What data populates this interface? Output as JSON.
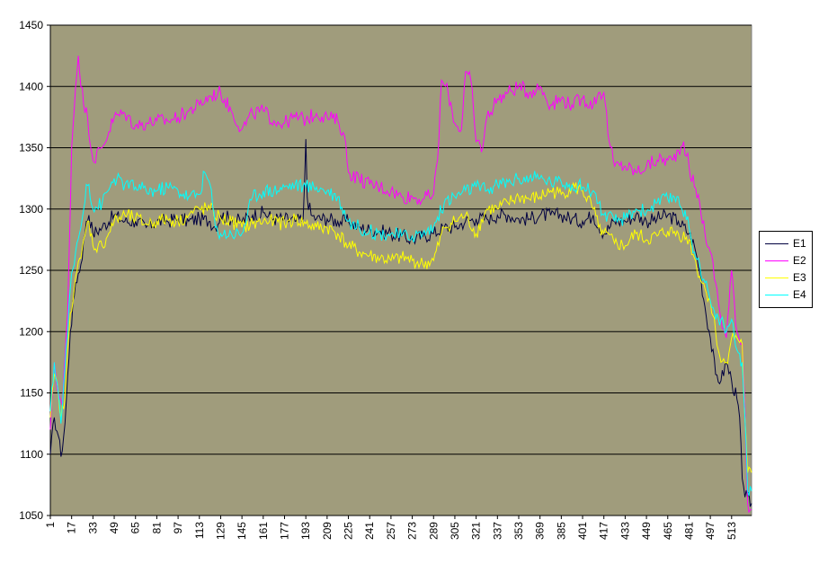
{
  "chart_data": {
    "type": "line",
    "title": "",
    "xlabel": "",
    "ylabel": "",
    "ylim": [
      1050,
      1450
    ],
    "yticks": [
      1050,
      1100,
      1150,
      1200,
      1250,
      1300,
      1350,
      1400,
      1450
    ],
    "xrange": [
      1,
      528
    ],
    "xticks": [
      1,
      17,
      33,
      49,
      65,
      81,
      97,
      113,
      129,
      145,
      161,
      177,
      193,
      209,
      225,
      241,
      257,
      273,
      289,
      305,
      321,
      337,
      353,
      369,
      385,
      401,
      417,
      433,
      449,
      465,
      481,
      497,
      513
    ],
    "grid": true,
    "background": "#A09C7C",
    "legend_position": "right",
    "series": [
      {
        "name": "E1",
        "color": "#000040",
        "x": [
          1,
          4,
          7,
          9,
          12,
          16,
          20,
          24,
          28,
          30,
          33,
          40,
          49,
          57,
          65,
          73,
          81,
          89,
          97,
          105,
          113,
          121,
          125,
          129,
          137,
          145,
          153,
          161,
          169,
          177,
          185,
          191,
          192,
          193,
          194,
          197,
          201,
          209,
          217,
          225,
          233,
          241,
          249,
          257,
          265,
          273,
          281,
          289,
          297,
          305,
          313,
          321,
          329,
          337,
          345,
          353,
          361,
          369,
          377,
          385,
          393,
          401,
          409,
          417,
          425,
          433,
          441,
          449,
          457,
          465,
          473,
          481,
          485,
          489,
          493,
          497,
          501,
          505,
          509,
          513,
          517,
          519,
          521,
          523,
          525,
          528
        ],
        "y": [
          1100,
          1130,
          1115,
          1098,
          1125,
          1200,
          1240,
          1255,
          1290,
          1295,
          1280,
          1285,
          1295,
          1290,
          1290,
          1285,
          1290,
          1290,
          1292,
          1290,
          1292,
          1290,
          1285,
          1295,
          1292,
          1290,
          1295,
          1297,
          1292,
          1292,
          1290,
          1292,
          1320,
          1357,
          1310,
          1295,
          1292,
          1292,
          1290,
          1290,
          1285,
          1283,
          1282,
          1280,
          1278,
          1275,
          1278,
          1280,
          1285,
          1285,
          1290,
          1292,
          1292,
          1295,
          1295,
          1292,
          1292,
          1295,
          1295,
          1295,
          1292,
          1290,
          1295,
          1280,
          1290,
          1290,
          1295,
          1290,
          1292,
          1295,
          1290,
          1280,
          1270,
          1250,
          1220,
          1195,
          1165,
          1160,
          1175,
          1160,
          1145,
          1130,
          1080,
          1065,
          1065,
          1060
        ]
      },
      {
        "name": "E2",
        "color": "#FF00FF",
        "x": [
          1,
          4,
          7,
          10,
          14,
          17,
          20,
          22,
          26,
          29,
          33,
          40,
          49,
          57,
          65,
          73,
          81,
          89,
          97,
          105,
          113,
          121,
          129,
          137,
          145,
          153,
          161,
          169,
          177,
          185,
          193,
          201,
          209,
          217,
          222,
          225,
          233,
          241,
          249,
          257,
          265,
          273,
          281,
          289,
          292,
          295,
          300,
          305,
          310,
          313,
          317,
          321,
          326,
          329,
          337,
          345,
          353,
          361,
          369,
          377,
          385,
          393,
          401,
          409,
          413,
          417,
          421,
          425,
          433,
          441,
          449,
          457,
          465,
          469,
          473,
          477,
          481,
          485,
          489,
          493,
          497,
          501,
          505,
          509,
          513,
          517,
          521,
          523,
          525,
          528
        ],
        "y": [
          1120,
          1175,
          1150,
          1140,
          1215,
          1350,
          1400,
          1425,
          1385,
          1375,
          1340,
          1350,
          1375,
          1378,
          1368,
          1370,
          1372,
          1372,
          1375,
          1380,
          1385,
          1392,
          1395,
          1380,
          1365,
          1378,
          1380,
          1372,
          1370,
          1375,
          1373,
          1378,
          1375,
          1372,
          1360,
          1330,
          1325,
          1320,
          1318,
          1315,
          1310,
          1310,
          1308,
          1312,
          1340,
          1405,
          1395,
          1370,
          1365,
          1412,
          1405,
          1355,
          1350,
          1375,
          1390,
          1395,
          1400,
          1395,
          1400,
          1385,
          1390,
          1385,
          1390,
          1385,
          1395,
          1395,
          1355,
          1335,
          1335,
          1330,
          1335,
          1340,
          1340,
          1340,
          1348,
          1355,
          1335,
          1318,
          1305,
          1280,
          1265,
          1240,
          1210,
          1195,
          1250,
          1200,
          1190,
          1140,
          1060,
          1055
        ]
      },
      {
        "name": "E3",
        "color": "#FFFF00",
        "x": [
          1,
          4,
          7,
          9,
          12,
          16,
          20,
          24,
          28,
          30,
          33,
          40,
          49,
          57,
          65,
          73,
          81,
          89,
          97,
          105,
          113,
          121,
          129,
          137,
          145,
          153,
          161,
          169,
          177,
          185,
          193,
          201,
          209,
          217,
          225,
          233,
          241,
          249,
          257,
          265,
          273,
          281,
          289,
          297,
          305,
          313,
          321,
          329,
          337,
          345,
          353,
          361,
          369,
          377,
          385,
          393,
          401,
          409,
          413,
          417,
          425,
          433,
          441,
          449,
          457,
          465,
          473,
          481,
          485,
          489,
          493,
          497,
          501,
          505,
          509,
          513,
          517,
          521,
          523,
          525,
          528
        ],
        "y": [
          1130,
          1165,
          1150,
          1130,
          1145,
          1215,
          1245,
          1260,
          1285,
          1290,
          1270,
          1270,
          1290,
          1295,
          1292,
          1288,
          1290,
          1292,
          1290,
          1295,
          1300,
          1300,
          1292,
          1290,
          1285,
          1288,
          1290,
          1290,
          1288,
          1292,
          1288,
          1285,
          1285,
          1280,
          1270,
          1265,
          1262,
          1260,
          1258,
          1260,
          1258,
          1255,
          1258,
          1285,
          1290,
          1295,
          1280,
          1300,
          1300,
          1305,
          1310,
          1308,
          1310,
          1315,
          1312,
          1318,
          1315,
          1300,
          1285,
          1280,
          1272,
          1270,
          1280,
          1275,
          1278,
          1282,
          1280,
          1275,
          1260,
          1245,
          1235,
          1225,
          1200,
          1175,
          1175,
          1195,
          1195,
          1190,
          1130,
          1085,
          1085
        ]
      },
      {
        "name": "E4",
        "color": "#00FFFF",
        "x": [
          1,
          4,
          7,
          9,
          12,
          16,
          20,
          24,
          28,
          30,
          33,
          40,
          49,
          57,
          65,
          73,
          81,
          89,
          97,
          105,
          113,
          117,
          121,
          125,
          129,
          137,
          145,
          153,
          161,
          169,
          177,
          185,
          193,
          201,
          209,
          217,
          225,
          233,
          241,
          249,
          257,
          265,
          273,
          281,
          289,
          297,
          305,
          313,
          321,
          329,
          337,
          345,
          353,
          361,
          369,
          377,
          385,
          393,
          401,
          409,
          417,
          425,
          433,
          441,
          449,
          457,
          465,
          473,
          481,
          485,
          489,
          493,
          497,
          501,
          505,
          509,
          513,
          517,
          521,
          523,
          525,
          528
        ],
        "y": [
          1135,
          1175,
          1150,
          1125,
          1170,
          1235,
          1265,
          1285,
          1320,
          1320,
          1300,
          1305,
          1325,
          1320,
          1318,
          1315,
          1315,
          1318,
          1315,
          1310,
          1312,
          1330,
          1320,
          1285,
          1280,
          1280,
          1280,
          1310,
          1315,
          1315,
          1318,
          1320,
          1318,
          1318,
          1315,
          1310,
          1290,
          1285,
          1282,
          1280,
          1280,
          1278,
          1278,
          1280,
          1285,
          1305,
          1310,
          1315,
          1318,
          1315,
          1320,
          1322,
          1325,
          1325,
          1325,
          1322,
          1322,
          1320,
          1318,
          1315,
          1295,
          1290,
          1292,
          1300,
          1298,
          1305,
          1308,
          1310,
          1285,
          1265,
          1255,
          1240,
          1225,
          1210,
          1210,
          1200,
          1210,
          1185,
          1175,
          1130,
          1070,
          1070
        ]
      }
    ]
  }
}
